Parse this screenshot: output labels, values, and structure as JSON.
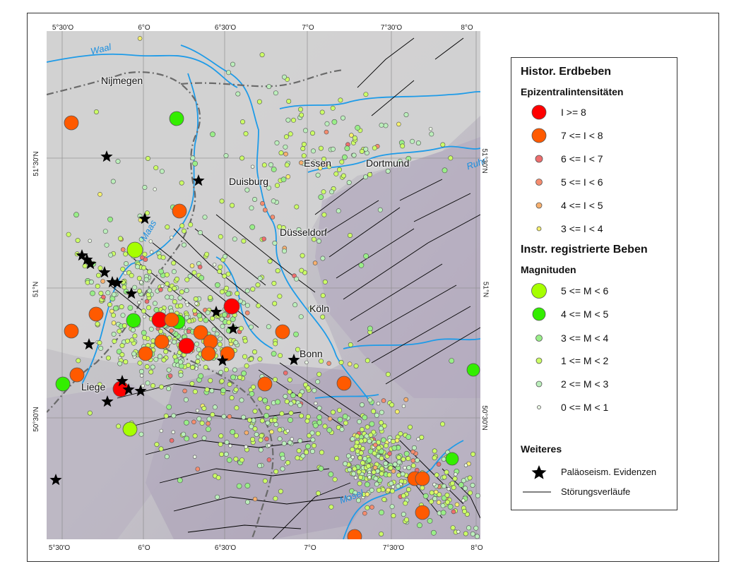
{
  "map": {
    "ticks_top": [
      "5°30'O",
      "6°O",
      "6°30'O",
      "7°O",
      "7°30'O",
      "8°O"
    ],
    "ticks_bottom": [
      "5°30'O",
      "6°O",
      "6°30'O",
      "7°O",
      "7°30'O",
      "8°O"
    ],
    "ticks_left": [
      "51°30'N",
      "51°N",
      "50°30'N"
    ],
    "ticks_right": [
      "51°30'N",
      "51°N",
      "50°30'N"
    ],
    "cities": [
      "Nijmegen",
      "Duisburg",
      "Essen",
      "Dortmund",
      "Düsseldorf",
      "Köln",
      "Bonn",
      "Liege"
    ],
    "rivers": [
      "Waal",
      "Maas",
      "Mosel",
      "Ruhr"
    ],
    "colors": {
      "water": "#1e9be8",
      "border": "#666666",
      "fault": "#000000",
      "intensity_8": "#ff0000",
      "intensity_7": "#ff5a00",
      "intensity_6": "#ee6e6e",
      "intensity_5": "#f58c6e",
      "intensity_4": "#f7b06e",
      "intensity_3": "#f5f06e",
      "magnitude_5": "#a6ff00",
      "magnitude_4": "#33ee00",
      "magnitude_3": "#99ee88",
      "magnitude_1": "#ccff66",
      "magnitude_2": "#bbeebb",
      "magnitude_0": "#eaf7e4"
    }
  },
  "legend": {
    "title": "Histor. Erdbeben",
    "intensity_title": "Epizentralintensitäten",
    "intensity_items": [
      "I >= 8",
      "7 <= I < 8",
      "6 <= I < 7",
      "5 <= I < 6",
      "4 <= I < 5",
      "3 <= I < 4"
    ],
    "instr_title": "Instr. registrierte Beben",
    "magnitude_title": "Magnituden",
    "magnitude_items": [
      "5 <= M < 6",
      "4 <= M < 5",
      "3 <= M < 4",
      "1 <= M < 2",
      "2 <= M < 3",
      "0 <= M < 1"
    ],
    "other_title": "Weiteres",
    "other_items": [
      "Paläoseism. Evidenzen",
      "Störungsverläufe"
    ]
  }
}
